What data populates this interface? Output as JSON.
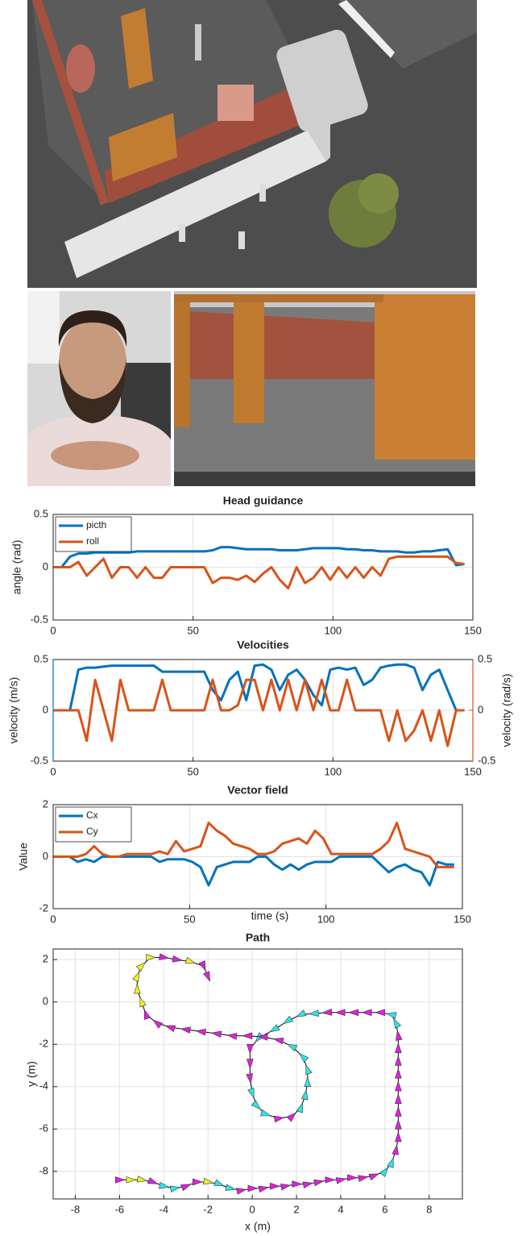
{
  "chart_data": [
    {
      "type": "line",
      "title": "Head guidance",
      "ylabel": "angle (rad)",
      "x": [
        0,
        3,
        6,
        9,
        12,
        15,
        18,
        21,
        24,
        27,
        30,
        33,
        36,
        39,
        42,
        45,
        48,
        51,
        54,
        57,
        60,
        63,
        66,
        69,
        72,
        75,
        78,
        81,
        84,
        87,
        90,
        93,
        96,
        99,
        102,
        105,
        108,
        111,
        114,
        117,
        120,
        123,
        126,
        129,
        132,
        135,
        138,
        141,
        144,
        147
      ],
      "series": [
        {
          "name": "picth",
          "color": "#0072bd",
          "values": [
            0,
            0,
            0.1,
            0.13,
            0.13,
            0.14,
            0.14,
            0.14,
            0.14,
            0.14,
            0.15,
            0.15,
            0.15,
            0.15,
            0.15,
            0.15,
            0.15,
            0.15,
            0.15,
            0.16,
            0.19,
            0.19,
            0.18,
            0.17,
            0.17,
            0.17,
            0.17,
            0.16,
            0.16,
            0.16,
            0.17,
            0.18,
            0.18,
            0.18,
            0.18,
            0.17,
            0.17,
            0.16,
            0.16,
            0.15,
            0.15,
            0.15,
            0.14,
            0.14,
            0.15,
            0.15,
            0.16,
            0.17,
            0.02,
            0.03
          ]
        },
        {
          "name": "roll",
          "color": "#d95319",
          "values": [
            0,
            0,
            0,
            0.05,
            -0.08,
            0,
            0.08,
            -0.1,
            0,
            0,
            -0.1,
            0,
            -0.1,
            -0.1,
            0,
            0,
            0,
            0,
            0,
            -0.15,
            -0.1,
            -0.1,
            -0.12,
            -0.08,
            -0.14,
            -0.06,
            0,
            -0.12,
            -0.2,
            0,
            -0.15,
            -0.1,
            0,
            -0.12,
            0,
            -0.1,
            0,
            -0.1,
            0,
            -0.08,
            0.08,
            0.1,
            0.1,
            0.1,
            0.1,
            0.1,
            0.1,
            0.1,
            0.04,
            0.03
          ]
        }
      ],
      "xlim": [
        0,
        150
      ],
      "xticks": [
        0,
        50,
        100,
        150
      ],
      "ylim": [
        -0.5,
        0.5
      ],
      "yticks": [
        -0.5,
        0,
        0.5
      ],
      "grid": true,
      "legend": "upper left"
    },
    {
      "type": "line",
      "title": "Velocities",
      "ylabel": "velocity (m/s)",
      "y2label": "velocity (rad/s)",
      "x": [
        0,
        3,
        6,
        9,
        12,
        15,
        18,
        21,
        24,
        27,
        30,
        33,
        36,
        39,
        42,
        45,
        48,
        51,
        54,
        57,
        60,
        63,
        66,
        69,
        72,
        75,
        78,
        81,
        84,
        87,
        90,
        93,
        96,
        99,
        102,
        105,
        108,
        111,
        114,
        117,
        120,
        123,
        126,
        129,
        132,
        135,
        138,
        141,
        144,
        147
      ],
      "series": [
        {
          "color": "#0072bd",
          "values": [
            0,
            0,
            0,
            0.4,
            0.42,
            0.42,
            0.43,
            0.44,
            0.44,
            0.44,
            0.44,
            0.44,
            0.44,
            0.38,
            0.38,
            0.38,
            0.38,
            0.38,
            0.38,
            0.2,
            0.1,
            0.3,
            0.38,
            0.1,
            0.44,
            0.45,
            0.4,
            0.2,
            0.35,
            0.4,
            0.3,
            0.15,
            0.05,
            0.4,
            0.42,
            0.4,
            0.42,
            0.25,
            0.3,
            0.42,
            0.44,
            0.45,
            0.45,
            0.42,
            0.2,
            0.35,
            0.4,
            0.2,
            0,
            0
          ]
        },
        {
          "color": "#d95319",
          "axis": "y2",
          "values": [
            0,
            0,
            0,
            0,
            -0.3,
            0.3,
            0,
            -0.3,
            0.3,
            0,
            0,
            0,
            0,
            0.3,
            0,
            0,
            0,
            0,
            0,
            0.3,
            0,
            0,
            0.05,
            0.3,
            0.3,
            0,
            0.3,
            0,
            0.3,
            0,
            0.3,
            0,
            0.3,
            0,
            0,
            0.3,
            0,
            0,
            0,
            0,
            -0.3,
            0,
            -0.3,
            -0.2,
            0,
            -0.3,
            0,
            -0.35,
            0,
            0
          ]
        }
      ],
      "xlim": [
        0,
        150
      ],
      "xticks": [
        0,
        50,
        100,
        150
      ],
      "ylim": [
        -0.5,
        0.5
      ],
      "yticks": [
        -0.5,
        0,
        0.5
      ],
      "y2lim": [
        -0.5,
        0.5
      ],
      "y2ticks": [
        -0.5,
        0,
        0.5
      ],
      "grid": true
    },
    {
      "type": "line",
      "title": "Vector field",
      "ylabel": "Value",
      "xlabel": "time (s)",
      "x": [
        0,
        3,
        6,
        9,
        12,
        15,
        18,
        21,
        24,
        27,
        30,
        33,
        36,
        39,
        42,
        45,
        48,
        51,
        54,
        57,
        60,
        63,
        66,
        69,
        72,
        75,
        78,
        81,
        84,
        87,
        90,
        93,
        96,
        99,
        102,
        105,
        108,
        111,
        114,
        117,
        120,
        123,
        126,
        129,
        132,
        135,
        138,
        141,
        144,
        147
      ],
      "series": [
        {
          "name": "Cx",
          "color": "#0072bd",
          "values": [
            0,
            0,
            0,
            -0.2,
            -0.1,
            -0.2,
            0,
            0,
            0,
            0,
            0,
            0,
            0,
            -0.2,
            -0.1,
            -0.1,
            -0.1,
            -0.2,
            -0.4,
            -1.1,
            -0.4,
            -0.3,
            -0.2,
            -0.2,
            -0.2,
            0,
            0,
            -0.3,
            -0.5,
            -0.3,
            -0.5,
            -0.3,
            -0.2,
            -0.2,
            -0.2,
            0,
            0,
            0,
            0,
            0,
            -0.3,
            -0.6,
            -0.4,
            -0.3,
            -0.5,
            -0.6,
            -1.1,
            -0.2,
            -0.3,
            -0.3
          ]
        },
        {
          "name": "Cy",
          "color": "#d95319",
          "values": [
            0,
            0,
            0,
            0,
            0.1,
            0.4,
            0.1,
            0,
            0,
            0.1,
            0.1,
            0.1,
            0.1,
            0.2,
            0.1,
            0.6,
            0.2,
            0.3,
            0.4,
            1.3,
            1.0,
            0.8,
            0.5,
            0.4,
            0.3,
            0.1,
            0.1,
            0.2,
            0.5,
            0.6,
            0.7,
            0.5,
            1.0,
            0.7,
            0.1,
            0.1,
            0.1,
            0.1,
            0.1,
            0.1,
            0.3,
            0.6,
            1.3,
            0.3,
            0.2,
            0.1,
            0,
            -0.4,
            -0.4,
            -0.4
          ]
        }
      ],
      "xlim": [
        0,
        150
      ],
      "xticks": [
        0,
        50,
        100,
        150
      ],
      "ylim": [
        -2,
        2
      ],
      "yticks": [
        -2,
        0,
        2
      ],
      "grid": true,
      "legend": "upper left"
    },
    {
      "type": "path",
      "title": "Path",
      "xlabel": "x (m)",
      "ylabel": "y (m)",
      "x": [
        -6,
        -5.5,
        -5,
        -4.5,
        -4,
        -3.5,
        -3,
        -2.5,
        -2,
        -1.5,
        -1,
        -0.5,
        0,
        0.5,
        1,
        1.5,
        2,
        2.5,
        3,
        3.5,
        4,
        4.5,
        5,
        5.5,
        6,
        6.3,
        6.5,
        6.6,
        6.6,
        6.6,
        6.6,
        6.6,
        6.6,
        6.6,
        6.6,
        6.6,
        6.5,
        6.3,
        5.8,
        5.2,
        4.6,
        4,
        3.4,
        2.8,
        2.2,
        1.6,
        1,
        0.3,
        -0.1,
        -0.1,
        -0.1,
        0,
        0.2,
        0.6,
        1.2,
        1.8,
        2.2,
        2.4,
        2.5,
        2.5,
        2.3,
        1.8,
        1.2,
        0.5,
        -0.2,
        -0.9,
        -1.6,
        -2.3,
        -3,
        -3.7,
        -4.3,
        -4.8,
        -5,
        -5.2,
        -5.2,
        -5,
        -4.6,
        -4,
        -3.4,
        -2.8,
        -2.2,
        -2
      ],
      "y": [
        -8.4,
        -8.4,
        -8.4,
        -8.5,
        -8.7,
        -8.8,
        -8.7,
        -8.5,
        -8.5,
        -8.6,
        -8.8,
        -8.9,
        -8.8,
        -8.8,
        -8.7,
        -8.7,
        -8.6,
        -8.6,
        -8.5,
        -8.4,
        -8.4,
        -8.3,
        -8.3,
        -8.2,
        -8,
        -7.6,
        -7,
        -6.4,
        -5.8,
        -5.2,
        -4.6,
        -4,
        -3.4,
        -2.8,
        -2.2,
        -1.6,
        -1,
        -0.6,
        -0.5,
        -0.5,
        -0.5,
        -0.5,
        -0.5,
        -0.55,
        -0.6,
        -0.9,
        -1.3,
        -1.7,
        -2.2,
        -2.9,
        -3.6,
        -4.3,
        -4.9,
        -5.3,
        -5.5,
        -5.4,
        -5,
        -4.4,
        -3.8,
        -3.2,
        -2.6,
        -2.1,
        -1.8,
        -1.65,
        -1.6,
        -1.6,
        -1.5,
        -1.4,
        -1.3,
        -1.2,
        -1,
        -0.6,
        0,
        0.6,
        1.2,
        1.7,
        2.1,
        2.1,
        2,
        1.9,
        1.7,
        1.2
      ],
      "marker_colors": [
        "#e11fe1",
        "#f2f21e",
        "#f2f21e",
        "#e11fe1",
        "#2ee6e6",
        "#2ee6e6",
        "#e11fe1",
        "#e11fe1",
        "#f2f21e",
        "#2ee6e6",
        "#2ee6e6",
        "#e11fe1",
        "#e11fe1",
        "#e11fe1",
        "#e11fe1",
        "#e11fe1",
        "#e11fe1",
        "#e11fe1",
        "#e11fe1",
        "#e11fe1",
        "#e11fe1",
        "#e11fe1",
        "#e11fe1",
        "#e11fe1",
        "#2ee6e6",
        "#2ee6e6",
        "#e11fe1",
        "#e11fe1",
        "#e11fe1",
        "#e11fe1",
        "#e11fe1",
        "#e11fe1",
        "#e11fe1",
        "#e11fe1",
        "#e11fe1",
        "#e11fe1",
        "#2ee6e6",
        "#2ee6e6",
        "#e11fe1",
        "#e11fe1",
        "#e11fe1",
        "#e11fe1",
        "#e11fe1",
        "#2ee6e6",
        "#2ee6e6",
        "#2ee6e6",
        "#2ee6e6",
        "#2ee6e6",
        "#e11fe1",
        "#e11fe1",
        "#e11fe1",
        "#2ee6e6",
        "#2ee6e6",
        "#2ee6e6",
        "#e11fe1",
        "#e11fe1",
        "#2ee6e6",
        "#2ee6e6",
        "#2ee6e6",
        "#2ee6e6",
        "#2ee6e6",
        "#2ee6e6",
        "#e11fe1",
        "#e11fe1",
        "#e11fe1",
        "#e11fe1",
        "#e11fe1",
        "#e11fe1",
        "#e11fe1",
        "#e11fe1",
        "#e11fe1",
        "#e11fe1",
        "#f2f21e",
        "#f2f21e",
        "#f2f21e",
        "#f2f21e",
        "#f2f21e",
        "#e11fe1",
        "#e11fe1",
        "#f2f21e",
        "#e11fe1",
        "#e11fe1"
      ],
      "line_color": "#000000",
      "xlim": [
        -9,
        9.5
      ],
      "xticks": [
        -8,
        -6,
        -4,
        -2,
        0,
        2,
        4,
        6,
        8
      ],
      "ylim": [
        -9.3,
        2.5
      ],
      "yticks": [
        -8,
        -6,
        -4,
        -2,
        0,
        2
      ],
      "grid": true
    }
  ]
}
